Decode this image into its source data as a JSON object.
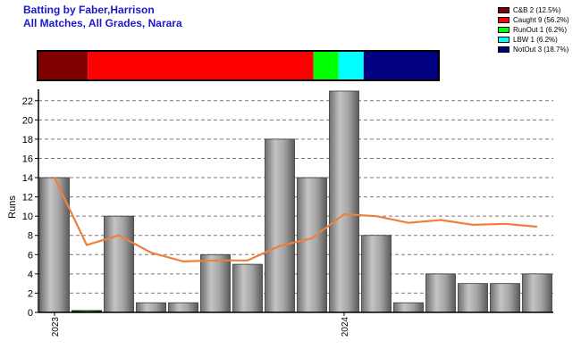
{
  "header": {
    "title": "Batting by Faber,Harrison",
    "subtitle": "All Matches, All Grades, Narara"
  },
  "legend": [
    {
      "label": "C&B 2 (12.5%)",
      "color": "#800000"
    },
    {
      "label": "Caught 9 (56.2%)",
      "color": "#ff0000"
    },
    {
      "label": "RunOut 1 (6.2%)",
      "color": "#00ff00"
    },
    {
      "label": "LBW 1 (6.2%)",
      "color": "#00ffff"
    },
    {
      "label": "NotOut 3 (18.7%)",
      "color": "#000080"
    }
  ],
  "chart_data": {
    "type": "bar",
    "dismissal_breakdown": [
      {
        "name": "C&B",
        "count": 2,
        "pct": 12.5,
        "color": "#800000"
      },
      {
        "name": "Caught",
        "count": 9,
        "pct": 56.2,
        "color": "#ff0000"
      },
      {
        "name": "RunOut",
        "count": 1,
        "pct": 6.2,
        "color": "#00ff00"
      },
      {
        "name": "LBW",
        "count": 1,
        "pct": 6.2,
        "color": "#00ffff"
      },
      {
        "name": "NotOut",
        "count": 3,
        "pct": 18.7,
        "color": "#000080"
      }
    ],
    "innings_runs": [
      14,
      0,
      10,
      1,
      1,
      6,
      5,
      18,
      14,
      23,
      8,
      1,
      4,
      3,
      3,
      4
    ],
    "innings_highlight": [
      false,
      true,
      false,
      false,
      false,
      false,
      false,
      false,
      false,
      false,
      false,
      false,
      false,
      false,
      false,
      false
    ],
    "highlight_color": "#006400",
    "running_average": [
      14,
      7,
      8,
      6.2,
      5.3,
      5.4,
      5.4,
      6.9,
      7.7,
      10.2,
      10.0,
      9.3,
      9.6,
      9.1,
      9.2,
      8.9
    ],
    "average_color": "#ee7f3c",
    "ylabel": "Runs",
    "ylim": [
      0,
      23
    ],
    "yticks": [
      0,
      2,
      4,
      6,
      8,
      10,
      12,
      14,
      16,
      18,
      20,
      22
    ],
    "xtick_labels": [
      {
        "index": 0,
        "label": "2023"
      },
      {
        "index": 9,
        "label": "2024"
      }
    ],
    "grid": true
  }
}
